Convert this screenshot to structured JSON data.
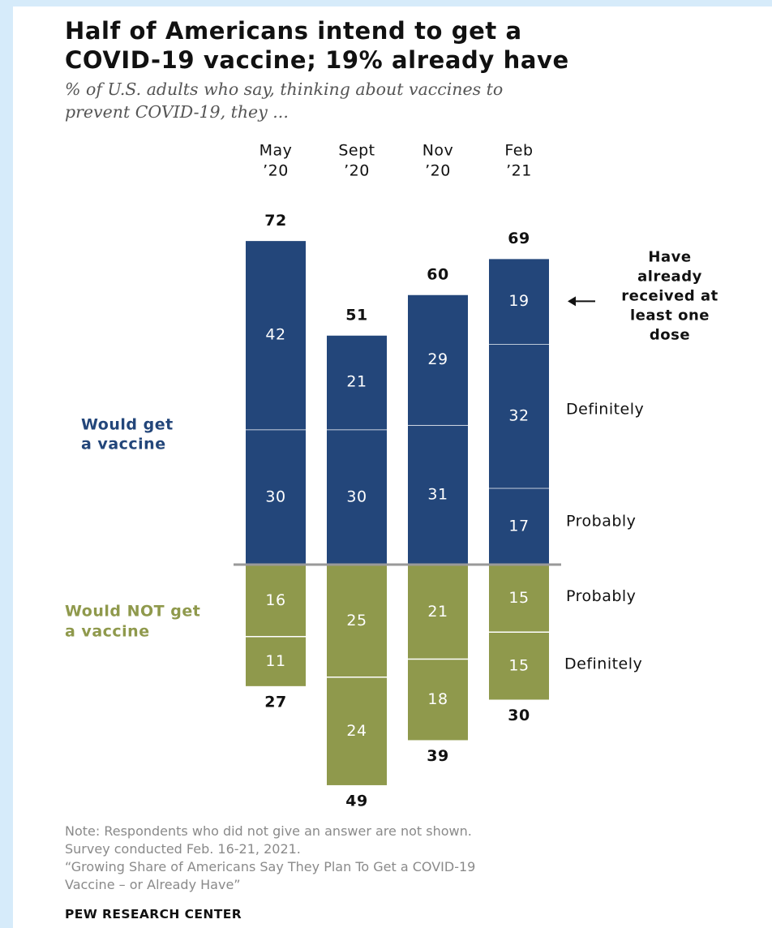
{
  "title_line1": "Half of Americans intend to get a",
  "title_line2": "COVID-19 vaccine; 19% already have",
  "subtitle_line1": "% of U.S. adults who say, thinking about vaccines to",
  "subtitle_line2": "prevent COVID-19, they ...",
  "note": {
    "line1": "Note: Respondents who did not give an answer are not shown.",
    "line2": "Survey conducted Feb. 16-21, 2021.",
    "line3": "“Growing Share of Americans Say They Plan To Get a COVID-19",
    "line4": "Vaccine – or Already Have”"
  },
  "source": "PEW RESEARCH CENTER",
  "chart_data": {
    "type": "bar",
    "stacked": "diverging",
    "categories": [
      {
        "line1": "May",
        "line2": "’20"
      },
      {
        "line1": "Sept",
        "line2": "’20"
      },
      {
        "line1": "Nov",
        "line2": "’20"
      },
      {
        "line1": "Feb",
        "line2": "’21"
      }
    ],
    "would_get": {
      "label_line1": "Would get",
      "label_line2": "a vaccine",
      "color": "#23467a",
      "totals": [
        72,
        51,
        60,
        69
      ],
      "segments": [
        {
          "name": "Probably",
          "values": [
            30,
            30,
            31,
            17
          ]
        },
        {
          "name": "Definitely",
          "values": [
            42,
            21,
            29,
            32
          ]
        },
        {
          "name": "Have already received at least one dose",
          "values": [
            null,
            null,
            null,
            19
          ]
        }
      ]
    },
    "would_not_get": {
      "label_line1": "Would NOT get",
      "label_line2": "a vaccine",
      "color": "#8f994c",
      "totals": [
        27,
        49,
        39,
        30
      ],
      "segments": [
        {
          "name": "Probably",
          "values": [
            16,
            25,
            21,
            15
          ]
        },
        {
          "name": "Definitely",
          "values": [
            11,
            24,
            18,
            15
          ]
        }
      ]
    },
    "right_labels": {
      "received": [
        "Have",
        "already",
        "received at",
        "least one",
        "dose"
      ],
      "definitely": "Definitely",
      "probably": "Probably",
      "not_probably": "Probably",
      "not_definitely": "Definitely"
    },
    "axis_color": "#999999",
    "label_color_light": "#ffffff"
  }
}
